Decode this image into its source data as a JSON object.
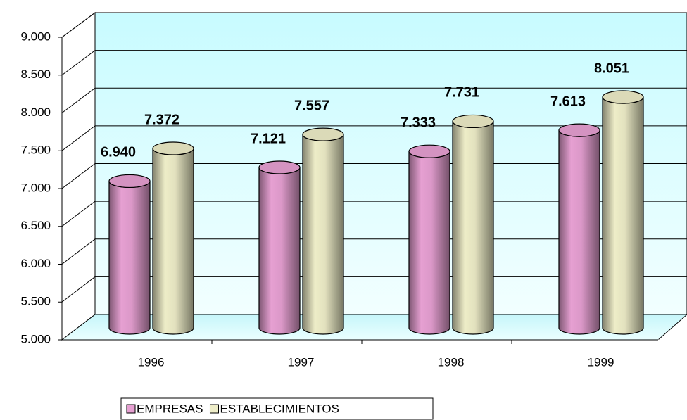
{
  "chart_data": {
    "type": "bar3d",
    "categories": [
      "1996",
      "1997",
      "1998",
      "1999"
    ],
    "series": [
      {
        "name": "EMPRESAS",
        "color": "#e6a0d2",
        "values": [
          6940,
          7121,
          7333,
          7613
        ],
        "value_labels": [
          "6.940",
          "7.121",
          "7.333",
          "7.613"
        ]
      },
      {
        "name": "ESTABLECIMIENTOS",
        "color": "#eeedc8",
        "values": [
          7372,
          7557,
          7731,
          8051
        ],
        "value_labels": [
          "7.372",
          "7.557",
          "7.731",
          "8.051"
        ]
      }
    ],
    "ylim": [
      5000,
      9000
    ],
    "yticks": [
      {
        "value": 5000,
        "label": "5.000"
      },
      {
        "value": 5500,
        "label": "5.500"
      },
      {
        "value": 6000,
        "label": "6.000"
      },
      {
        "value": 6500,
        "label": "6.500"
      },
      {
        "value": 7000,
        "label": "7.000"
      },
      {
        "value": 7500,
        "label": "7.500"
      },
      {
        "value": 8000,
        "label": "8.000"
      },
      {
        "value": 8500,
        "label": "8.500"
      },
      {
        "value": 9000,
        "label": "9.000"
      }
    ],
    "grid": true
  }
}
